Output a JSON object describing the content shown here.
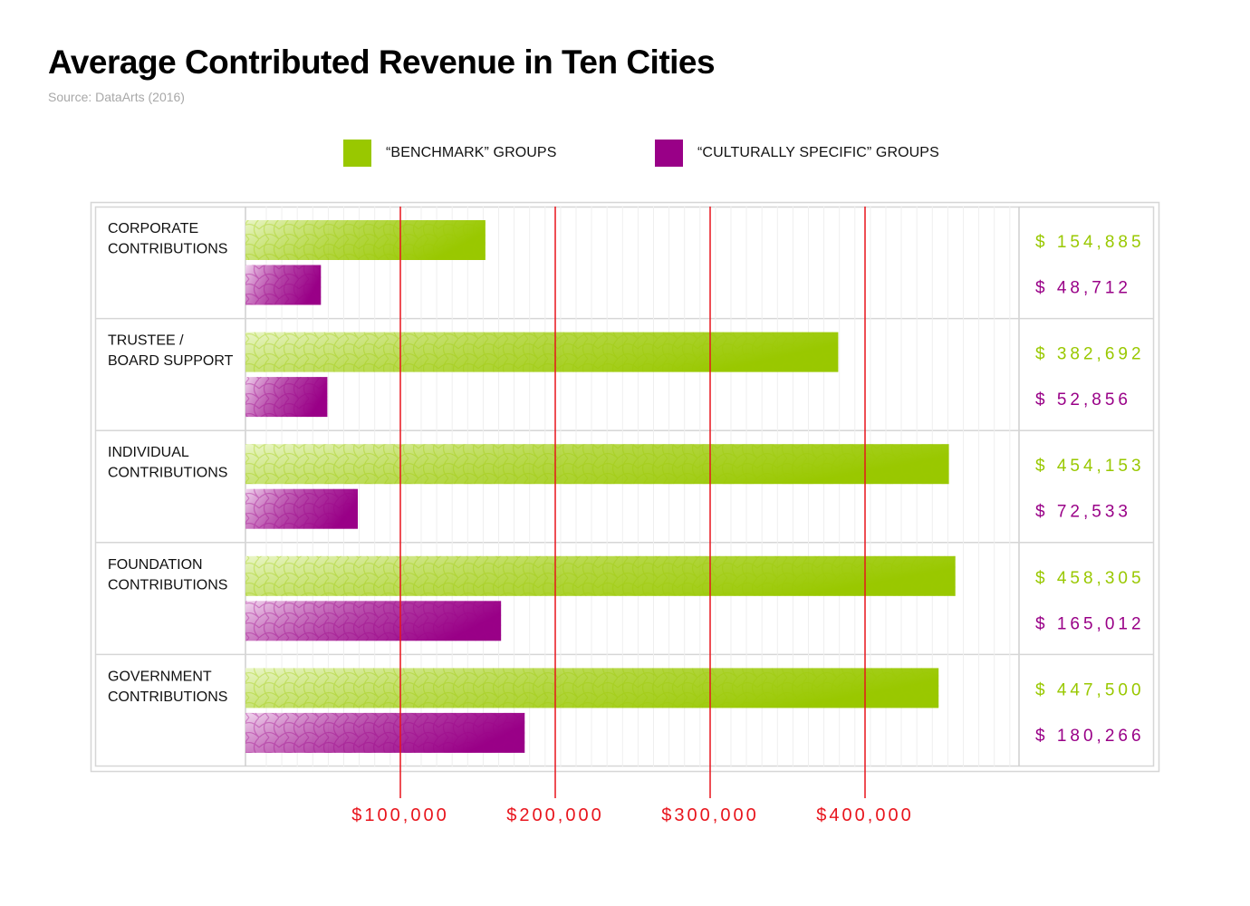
{
  "chart_data": {
    "type": "bar",
    "orientation": "horizontal",
    "title": "Average Contributed Revenue in Ten Cities",
    "subtitle": "Source: DataArts (2016)",
    "xlabel": "",
    "ylabel": "",
    "xlim": [
      0,
      500000
    ],
    "grid": true,
    "legend_position": "top-center",
    "categories": [
      "CORPORATE CONTRIBUTIONS",
      "TRUSTEE / BOARD SUPPORT",
      "INDIVIDUAL CONTRIBUTIONS",
      "FOUNDATION CONTRIBUTIONS",
      "GOVERNMENT CONTRIBUTIONS"
    ],
    "category_lines": [
      [
        "CORPORATE",
        "CONTRIBUTIONS"
      ],
      [
        "TRUSTEE /",
        "BOARD SUPPORT"
      ],
      [
        "INDIVIDUAL",
        "CONTRIBUTIONS"
      ],
      [
        "FOUNDATION",
        "CONTRIBUTIONS"
      ],
      [
        "GOVERNMENT",
        "CONTRIBUTIONS"
      ]
    ],
    "series": [
      {
        "name": "“BENCHMARK” GROUPS",
        "color": "#99c800",
        "light_color": "#eaf6c8",
        "values": [
          154885,
          382692,
          454153,
          458305,
          447500
        ],
        "labels": [
          "$ 154,885",
          "$ 382,692",
          "$ 454,153",
          "$ 458,305",
          "$ 447,500"
        ]
      },
      {
        "name": "“CULTURALLY SPECIFIC” GROUPS",
        "color": "#990087",
        "light_color": "#f1d6ee",
        "values": [
          48712,
          52856,
          72533,
          165012,
          180266
        ],
        "labels": [
          "$ 48,712",
          "$ 52,856",
          "$ 72,533",
          "$ 165,012",
          "$ 180,266"
        ]
      }
    ],
    "reference_lines": {
      "color": "#e8141c",
      "values": [
        100000,
        200000,
        300000,
        400000
      ],
      "labels": [
        "$100,000",
        "$200,000",
        "$300,000",
        "$400,000"
      ]
    }
  },
  "header": {
    "title": "Average Contributed Revenue in Ten Cities",
    "source": "Source: DataArts (2016)"
  },
  "legend": [
    {
      "label": "“BENCHMARK” GROUPS",
      "color": "#99c800"
    },
    {
      "label": "“CULTURALLY SPECIFIC” GROUPS",
      "color": "#990087"
    }
  ]
}
